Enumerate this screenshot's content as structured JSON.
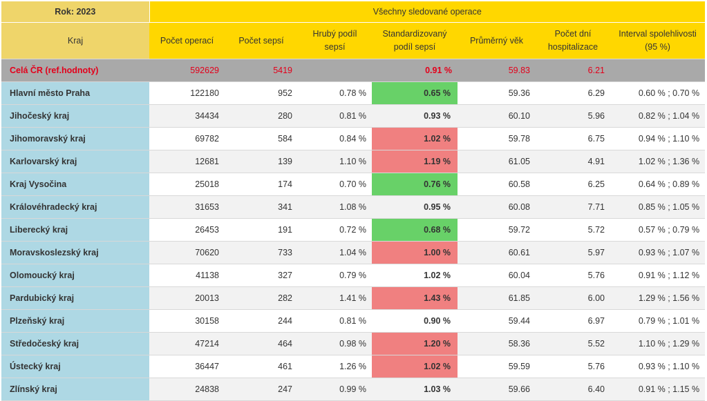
{
  "header": {
    "year_label": "Rok: 2023",
    "group_label": "Všechny sledované operace",
    "columns": [
      "Kraj",
      "Počet operací",
      "Počet sepsí",
      "Hrubý podíl sepsí",
      "Standardizovaný podíl sepsí",
      "Průměrný věk",
      "Počet dní hospitalizace",
      "Interval spolehlivosti (95 %)"
    ]
  },
  "reference_row": {
    "kraj": "Celá ČR (ref.hodnoty)",
    "operace": "592629",
    "sepse": "5419",
    "hruby": "",
    "std": "0.91 %",
    "vek": "59.83",
    "dni": "6.21",
    "interval": ""
  },
  "rows": [
    {
      "kraj": "Hlavní město Praha",
      "operace": "122180",
      "sepse": "952",
      "hruby": "0.78 %",
      "std": "0.65 %",
      "status": "green",
      "vek": "59.36",
      "dni": "6.29",
      "interval": "0.60 % ; 0.70 %"
    },
    {
      "kraj": "Jihočeský kraj",
      "operace": "34434",
      "sepse": "280",
      "hruby": "0.81 %",
      "std": "0.93 %",
      "status": "none",
      "vek": "60.10",
      "dni": "5.96",
      "interval": "0.82 % ; 1.04 %"
    },
    {
      "kraj": "Jihomoravský kraj",
      "operace": "69782",
      "sepse": "584",
      "hruby": "0.84 %",
      "std": "1.02 %",
      "status": "red",
      "vek": "59.78",
      "dni": "6.75",
      "interval": "0.94 % ; 1.10 %"
    },
    {
      "kraj": "Karlovarský kraj",
      "operace": "12681",
      "sepse": "139",
      "hruby": "1.10 %",
      "std": "1.19 %",
      "status": "red",
      "vek": "61.05",
      "dni": "4.91",
      "interval": "1.02 % ; 1.36 %"
    },
    {
      "kraj": "Kraj Vysočina",
      "operace": "25018",
      "sepse": "174",
      "hruby": "0.70 %",
      "std": "0.76 %",
      "status": "green",
      "vek": "60.58",
      "dni": "6.25",
      "interval": "0.64 % ; 0.89 %"
    },
    {
      "kraj": "Královéhradecký kraj",
      "operace": "31653",
      "sepse": "341",
      "hruby": "1.08 %",
      "std": "0.95 %",
      "status": "none",
      "vek": "60.08",
      "dni": "7.71",
      "interval": "0.85 % ; 1.05 %"
    },
    {
      "kraj": "Liberecký kraj",
      "operace": "26453",
      "sepse": "191",
      "hruby": "0.72 %",
      "std": "0.68 %",
      "status": "green",
      "vek": "59.72",
      "dni": "5.72",
      "interval": "0.57 % ; 0.79 %"
    },
    {
      "kraj": "Moravskoslezský kraj",
      "operace": "70620",
      "sepse": "733",
      "hruby": "1.04 %",
      "std": "1.00 %",
      "status": "red",
      "vek": "60.61",
      "dni": "5.97",
      "interval": "0.93 % ; 1.07 %"
    },
    {
      "kraj": "Olomoucký kraj",
      "operace": "41138",
      "sepse": "327",
      "hruby": "0.79 %",
      "std": "1.02 %",
      "status": "none",
      "vek": "60.04",
      "dni": "5.76",
      "interval": "0.91 % ; 1.12 %"
    },
    {
      "kraj": "Pardubický kraj",
      "operace": "20013",
      "sepse": "282",
      "hruby": "1.41 %",
      "std": "1.43 %",
      "status": "red",
      "vek": "61.85",
      "dni": "6.00",
      "interval": "1.29 % ; 1.56 %"
    },
    {
      "kraj": "Plzeňský kraj",
      "operace": "30158",
      "sepse": "244",
      "hruby": "0.81 %",
      "std": "0.90 %",
      "status": "none",
      "vek": "59.44",
      "dni": "6.97",
      "interval": "0.79 % ; 1.01 %"
    },
    {
      "kraj": "Středočeský kraj",
      "operace": "47214",
      "sepse": "464",
      "hruby": "0.98 %",
      "std": "1.20 %",
      "status": "red",
      "vek": "58.36",
      "dni": "5.52",
      "interval": "1.10 % ; 1.29 %"
    },
    {
      "kraj": "Ústecký kraj",
      "operace": "36447",
      "sepse": "461",
      "hruby": "1.26 %",
      "std": "1.02 %",
      "status": "red",
      "vek": "59.59",
      "dni": "5.76",
      "interval": "0.93 % ; 1.10 %"
    },
    {
      "kraj": "Zlínský kraj",
      "operace": "24838",
      "sepse": "247",
      "hruby": "0.99 %",
      "std": "1.03 %",
      "status": "none",
      "vek": "59.66",
      "dni": "6.40",
      "interval": "0.91 % ; 1.15 %"
    }
  ],
  "colors": {
    "header_yellow": "#ffd700",
    "header_gold": "#efd56a",
    "region_blue": "#aed8e4",
    "reference_gray": "#a9a9a9",
    "reference_text_red": "#e3001b",
    "better_green": "#68d168",
    "worse_red": "#f08080"
  }
}
